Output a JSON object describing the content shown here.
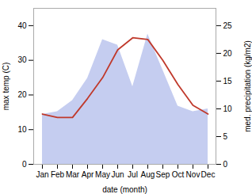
{
  "chart_data": {
    "type": "combo",
    "categories": [
      "Jan",
      "Feb",
      "Mar",
      "Apr",
      "May",
      "Jun",
      "Jul",
      "Aug",
      "Sep",
      "Oct",
      "Nov",
      "Dec"
    ],
    "series": [
      {
        "type": "area",
        "axis": "y2",
        "color": "#c5cdf0",
        "values": [
          9.0,
          9.5,
          11.5,
          15.5,
          22.5,
          21.5,
          14.0,
          23.5,
          17.0,
          10.5,
          9.5,
          10.0
        ]
      },
      {
        "type": "line",
        "color": "#c0392b",
        "values": [
          14.5,
          13.5,
          13.5,
          19.0,
          25.0,
          33.0,
          36.5,
          36.0,
          30.0,
          23.0,
          17.0,
          14.5
        ]
      }
    ],
    "xlabel": "date (month)",
    "ylabel": "max temp (C)",
    "y2label": "med. precipitation (kg/m2)",
    "ylim": [
      0,
      45
    ],
    "yticks": [
      0,
      10,
      20,
      30,
      40
    ],
    "y2lim": [
      0,
      28.125
    ],
    "y2ticks": [
      0,
      5,
      10,
      15,
      20,
      25
    ],
    "grid": false
  }
}
